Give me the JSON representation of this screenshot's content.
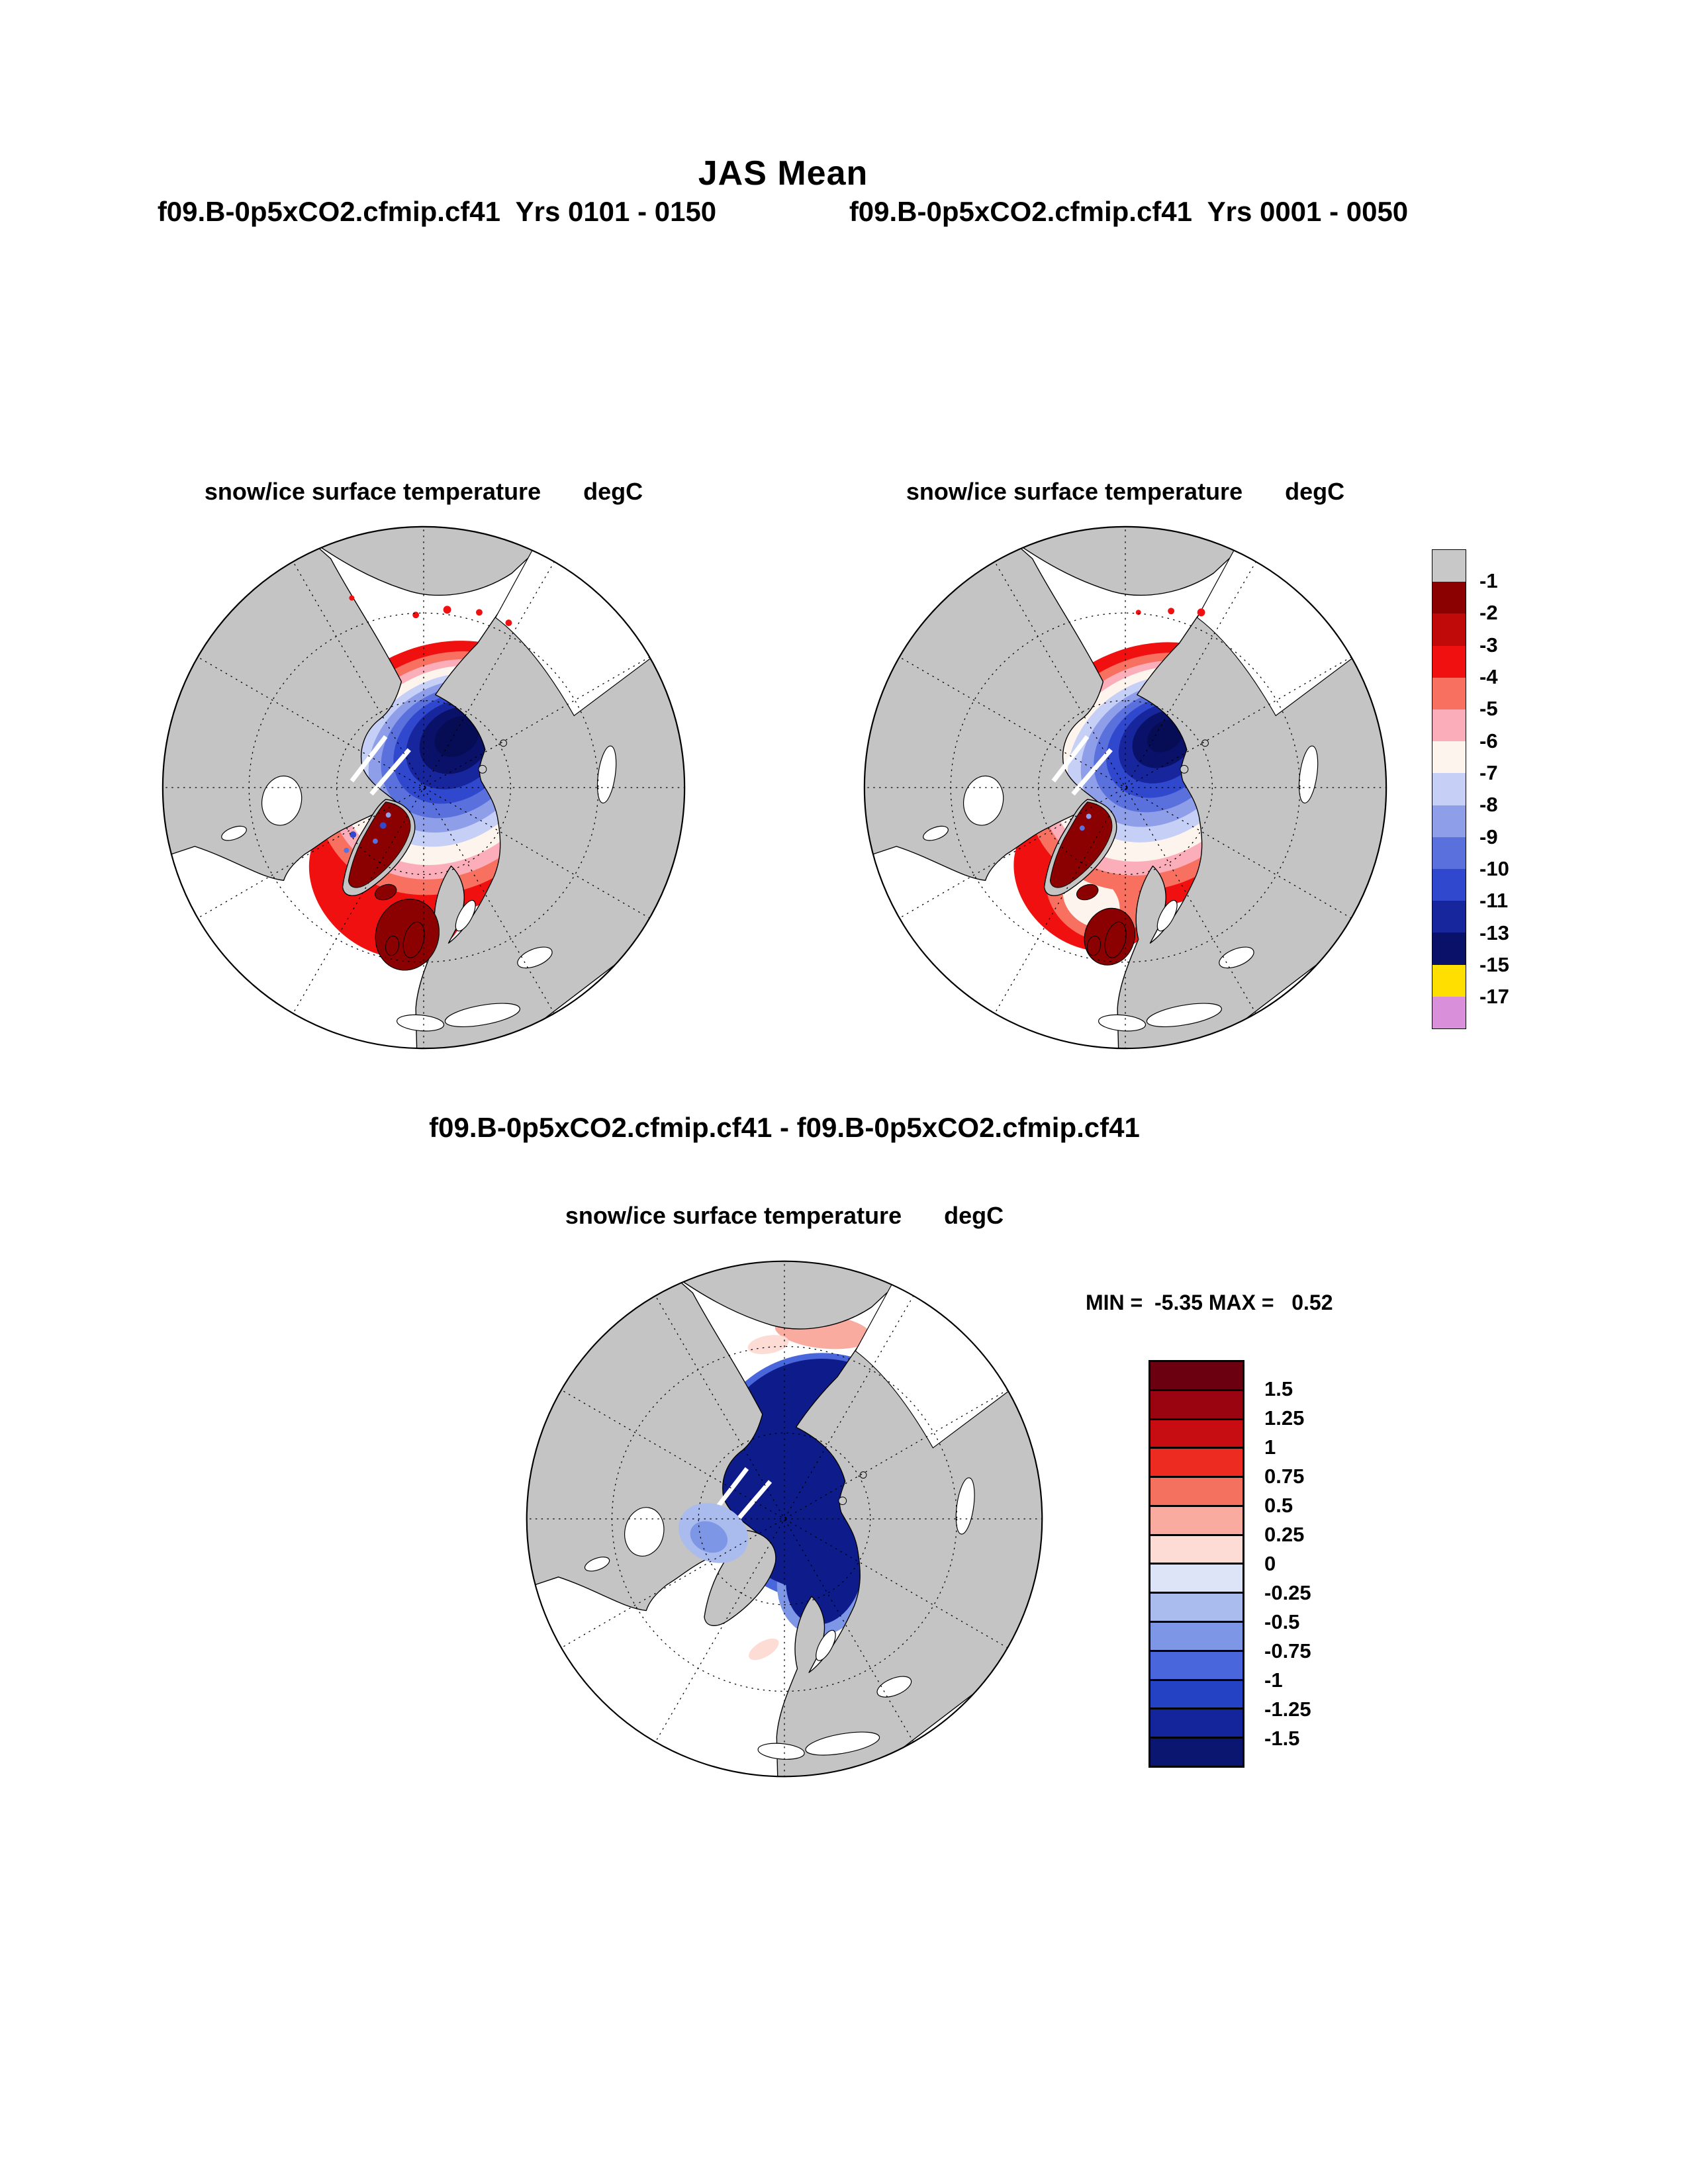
{
  "header": {
    "title": "JAS Mean",
    "case_left": "f09.B-0p5xCO2.cfmip.cf41  Yrs 0101 - 0150",
    "case_right": "f09.B-0p5xCO2.cfmip.cf41  Yrs 0001 - 0050"
  },
  "panels": {
    "left": {
      "title": "snow/ice surface temperature",
      "units": "degC"
    },
    "right": {
      "title": "snow/ice surface temperature",
      "units": "degC"
    },
    "diff": {
      "title": "snow/ice surface temperature",
      "units": "degC"
    }
  },
  "diff": {
    "header": "f09.B-0p5xCO2.cfmip.cf41 - f09.B-0p5xCO2.cfmip.cf41",
    "minmax": "MIN =  -5.35 MAX =   0.52"
  },
  "colorbar_top": {
    "colors": [
      "#c8c8c8",
      "#8b0000",
      "#c00a0a",
      "#f01010",
      "#f8705f",
      "#fbadb9",
      "#fdf4ed",
      "#c6cff5",
      "#8e9ee9",
      "#5a70dc",
      "#3048cd",
      "#18269e",
      "#0a1168",
      "#ffdf00",
      "#d98fd9"
    ],
    "labels": [
      "-1",
      "-2",
      "-3",
      "-4",
      "-5",
      "-6",
      "-7",
      "-8",
      "-9",
      "-10",
      "-11",
      "-13",
      "-15",
      "-17"
    ]
  },
  "colorbar_bottom": {
    "colors": [
      "#6b0010",
      "#9a0410",
      "#c80d12",
      "#ee2b20",
      "#f4705f",
      "#f9aba0",
      "#fcdcd4",
      "#dde4f8",
      "#aabbee",
      "#7d96e6",
      "#4a66dc",
      "#2442c4",
      "#14249a",
      "#0a1670"
    ],
    "labels": [
      "1.5",
      "1.25",
      "1",
      "0.75",
      "0.5",
      "0.25",
      "0",
      "-0.25",
      "-0.5",
      "-0.75",
      "-1",
      "-1.25",
      "-1.5"
    ]
  },
  "chart_data": [
    {
      "type": "heatmap",
      "subtype": "north-polar-stereographic-map",
      "title": "snow/ice surface temperature",
      "units": "degC",
      "case": "f09.B-0p5xCO2.cfmip.cf41",
      "years": "0101 - 0150",
      "season": "JAS Mean",
      "levels": [
        -1,
        -2,
        -3,
        -4,
        -5,
        -6,
        -7,
        -8,
        -9,
        -10,
        -11,
        -13,
        -15,
        -17
      ],
      "palette": [
        "#c8c8c8",
        "#8b0000",
        "#c00a0a",
        "#f01010",
        "#f8705f",
        "#fbadb9",
        "#fdf4ed",
        "#c6cff5",
        "#8e9ee9",
        "#5a70dc",
        "#3048cd",
        "#18269e",
        "#0a1168",
        "#ffdf00",
        "#d98fd9"
      ],
      "legend_position": "right",
      "grid": "dashed polar graticule, latitude circles and 30-degree meridians",
      "description": "Cold core (-10 to -15 degC, dark navy) over the central Arctic Ocean, concentric warmer rings outward through blues, white, pinks to a red ice-edge ring (-1 to -4 degC); dark red (-1 to -2) over Greenland and the UK/Norwegian Sea area; gray denotes values above -1; continents gray, open ocean white."
    },
    {
      "type": "heatmap",
      "subtype": "north-polar-stereographic-map",
      "title": "snow/ice surface temperature",
      "units": "degC",
      "case": "f09.B-0p5xCO2.cfmip.cf41",
      "years": "0001 - 0050",
      "season": "JAS Mean",
      "levels": [
        -1,
        -2,
        -3,
        -4,
        -5,
        -6,
        -7,
        -8,
        -9,
        -10,
        -11,
        -13,
        -15,
        -17
      ],
      "palette": [
        "#c8c8c8",
        "#8b0000",
        "#c00a0a",
        "#f01010",
        "#f8705f",
        "#fbadb9",
        "#fdf4ed",
        "#c6cff5",
        "#8e9ee9",
        "#5a70dc",
        "#3048cd",
        "#18269e",
        "#0a1168",
        "#ffdf00",
        "#d98fd9"
      ],
      "legend_position": "right",
      "grid": "dashed polar graticule, latitude circles and 30-degree meridians",
      "description": "Same field for the earlier period: slightly smaller/weaker cold core over the central Arctic Ocean, broader white-pink transition zone, red ice-edge ring along the Atlantic and Siberian margins, dark red over Greenland and the UK area."
    },
    {
      "type": "heatmap",
      "subtype": "north-polar-stereographic-map",
      "title": "snow/ice surface temperature",
      "units": "degC",
      "case": "f09.B-0p5xCO2.cfmip.cf41 - f09.B-0p5xCO2.cfmip.cf41",
      "season": "JAS Mean",
      "min": -5.35,
      "max": 0.52,
      "levels": [
        1.5,
        1.25,
        1,
        0.75,
        0.5,
        0.25,
        0,
        -0.25,
        -0.5,
        -0.75,
        -1,
        -1.25,
        -1.5
      ],
      "palette": [
        "#6b0010",
        "#9a0410",
        "#c80d12",
        "#ee2b20",
        "#f4705f",
        "#f9aba0",
        "#fcdcd4",
        "#dde4f8",
        "#aabbee",
        "#7d96e6",
        "#4a66dc",
        "#2442c4",
        "#14249a",
        "#0a1670"
      ],
      "legend_position": "right",
      "grid": "dashed polar graticule, latitude circles and 30-degree meridians",
      "description": "Difference map: strong cooling (below -1.5, dark navy) covering the central Arctic Ocean down to Scandinavia, lighter blue patch over the Greenland/Canadian Archipelago sector, small pink (slight warming up to +0.5) strips along the Siberian coastal margin and near the UK."
    }
  ]
}
